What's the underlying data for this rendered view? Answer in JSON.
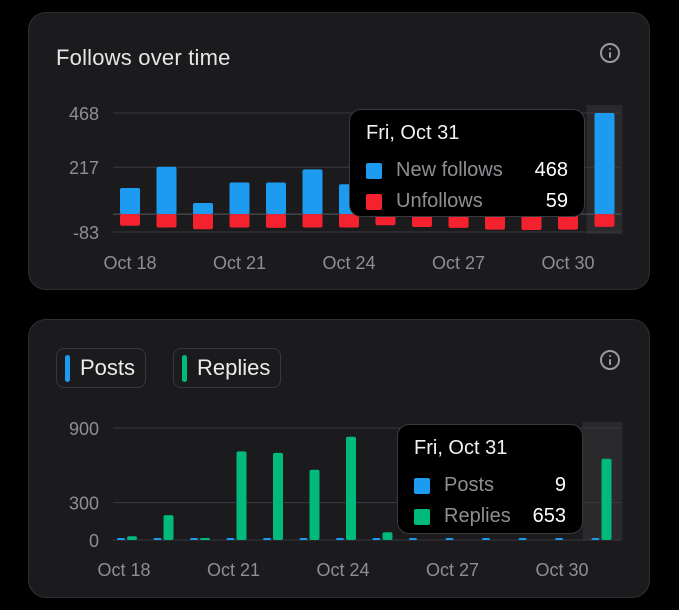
{
  "follows": {
    "title": "Follows over time",
    "info_icon": "info-icon",
    "colors": {
      "new": "#1d9bf0",
      "unfollow": "#f4212e"
    },
    "tooltip": {
      "date": "Fri, Oct 31",
      "rows": [
        {
          "label": "New follows",
          "value": "468",
          "color": "#1d9bf0"
        },
        {
          "label": "Unfollows",
          "value": "59",
          "color": "#f4212e"
        }
      ]
    }
  },
  "posts": {
    "legend": [
      {
        "label": "Posts",
        "color": "#1d9bf0"
      },
      {
        "label": "Replies",
        "color": "#00ba7c"
      }
    ],
    "info_icon": "info-icon",
    "tooltip": {
      "date": "Fri, Oct 31",
      "rows": [
        {
          "label": "Posts",
          "value": "9",
          "color": "#1d9bf0"
        },
        {
          "label": "Replies",
          "value": "653",
          "color": "#00ba7c"
        }
      ]
    }
  },
  "chart_data": [
    {
      "type": "bar",
      "title": "Follows over time",
      "categories": [
        "Oct 18",
        "Oct 19",
        "Oct 20",
        "Oct 21",
        "Oct 22",
        "Oct 23",
        "Oct 24",
        "Oct 25",
        "Oct 26",
        "Oct 27",
        "Oct 28",
        "Oct 29",
        "Oct 30",
        "Oct 31"
      ],
      "tick_labels": [
        "Oct 18",
        "Oct 21",
        "Oct 24",
        "Oct 27",
        "Oct 30"
      ],
      "y_ticks": [
        "468",
        "217",
        "-83"
      ],
      "ylim": [
        -83,
        468
      ],
      "highlighted": "Oct 31",
      "series": [
        {
          "name": "New follows",
          "color": "#1d9bf0",
          "values": [
            121,
            219,
            51,
            146,
            146,
            207,
            138,
            0,
            0,
            0,
            0,
            0,
            0,
            468
          ]
        },
        {
          "name": "Unfollows",
          "color": "#f4212e",
          "values": [
            -54,
            -62,
            -70,
            -62,
            -64,
            -62,
            -62,
            -52,
            -60,
            -64,
            -72,
            -74,
            -72,
            -59
          ]
        }
      ]
    },
    {
      "type": "bar",
      "categories": [
        "Oct 18",
        "Oct 19",
        "Oct 20",
        "Oct 21",
        "Oct 22",
        "Oct 23",
        "Oct 24",
        "Oct 25",
        "Oct 26",
        "Oct 27",
        "Oct 28",
        "Oct 29",
        "Oct 30",
        "Oct 31"
      ],
      "tick_labels": [
        "Oct 18",
        "Oct 21",
        "Oct 24",
        "Oct 27",
        "Oct 30"
      ],
      "y_ticks": [
        "900",
        "300",
        "0"
      ],
      "ylim": [
        0,
        900
      ],
      "highlighted": "Oct 31",
      "series": [
        {
          "name": "Posts",
          "color": "#1d9bf0",
          "values": [
            6,
            8,
            7,
            7,
            8,
            8,
            7,
            8,
            7,
            7,
            8,
            8,
            8,
            9
          ]
        },
        {
          "name": "Replies",
          "color": "#00ba7c",
          "values": [
            30,
            200,
            12,
            712,
            700,
            565,
            830,
            62,
            0,
            0,
            0,
            0,
            0,
            653
          ]
        }
      ]
    }
  ]
}
